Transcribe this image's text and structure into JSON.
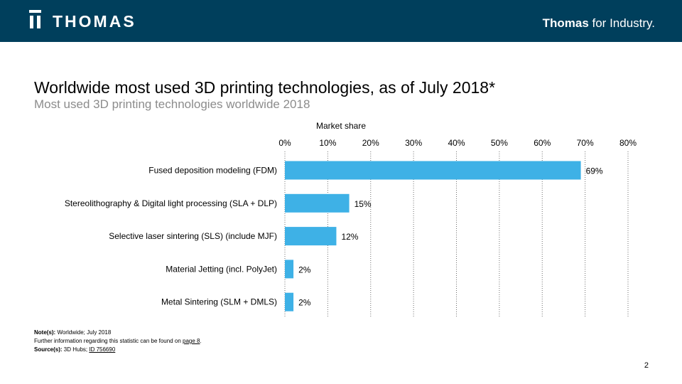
{
  "header": {
    "logo_text": "THOMAS",
    "tagline_bold": "Thomas",
    "tagline_rest": " for Industry."
  },
  "title": "Worldwide most used 3D printing technologies, as of July 2018*",
  "subtitle": "Most used 3D printing technologies worldwide 2018",
  "chart_data": {
    "type": "bar",
    "orientation": "horizontal",
    "axis_title": "Market share",
    "xlim": [
      0,
      80
    ],
    "ticks": [
      "0%",
      "10%",
      "20%",
      "30%",
      "40%",
      "50%",
      "60%",
      "70%",
      "80%"
    ],
    "categories": [
      "Fused deposition modeling (FDM)",
      "Stereolithography & Digital light processing (SLA + DLP)",
      "Selective laser sintering (SLS) (include MJF)",
      "Material Jetting (incl. PolyJet)",
      "Metal Sintering (SLM + DMLS)"
    ],
    "values": [
      69,
      15,
      12,
      2,
      2
    ],
    "value_labels": [
      "69%",
      "15%",
      "12%",
      "2%",
      "2%"
    ],
    "bar_color": "#3eb1e6",
    "grid": "vertical dotted"
  },
  "notes": {
    "note_label": "Note(s):",
    "note_text": " Worldwide; July 2018",
    "further_text": "Further information regarding this statistic can be found on ",
    "further_link": "page 8",
    "further_end": ".",
    "source_label": "Source(s):",
    "source_text": " 3D Hubs; ",
    "source_link": "ID 756690"
  },
  "page_number": "2"
}
